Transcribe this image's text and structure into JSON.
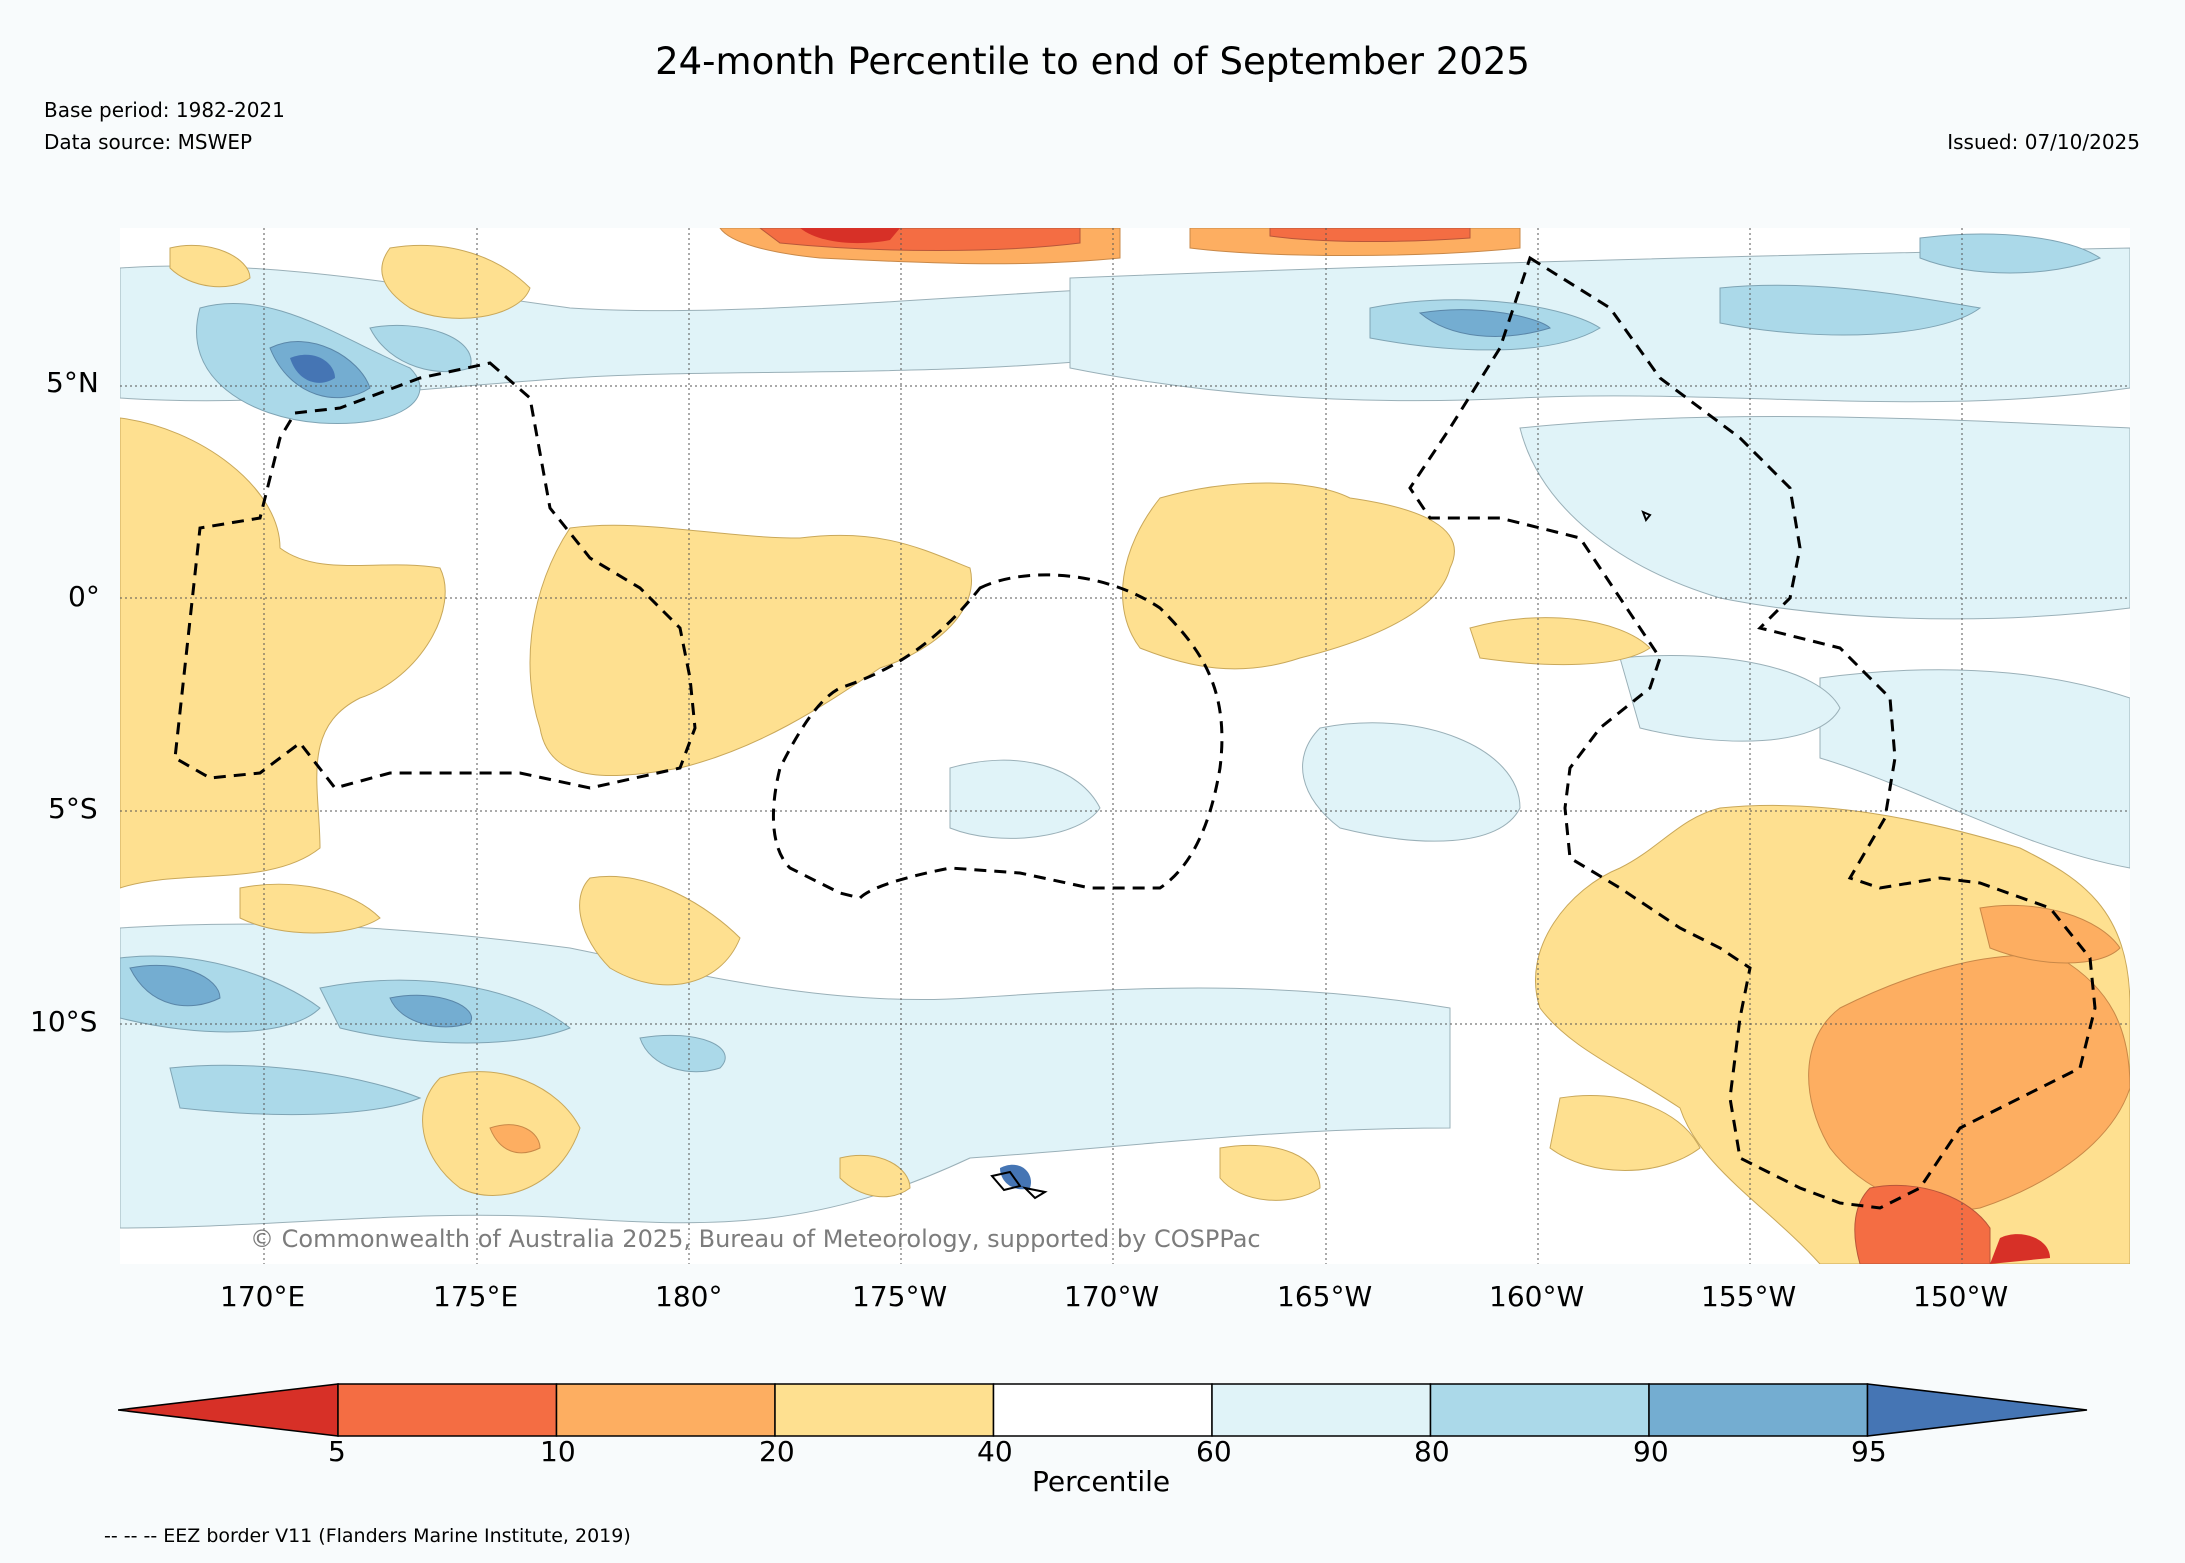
{
  "title": "24-month Percentile to end of September 2025",
  "base_period": "Base period: 1982-2021",
  "data_source": "Data source: MSWEP",
  "issued": "Issued: 07/10/2025",
  "copyright": "© Commonwealth of Australia 2025, Bureau of Meteorology, supported by COSPPac",
  "footer_note": "-- -- -- EEZ border V11 (Flanders Marine Institute, 2019)",
  "lat_labels": [
    "5°N",
    "0°",
    "5°S",
    "10°S"
  ],
  "lon_labels": [
    "170°E",
    "175°E",
    "180°",
    "175°W",
    "170°W",
    "165°W",
    "160°W",
    "155°W",
    "150°W"
  ],
  "colorbar": {
    "title": "Percentile",
    "ticks": [
      "5",
      "10",
      "20",
      "40",
      "60",
      "80",
      "90",
      "95"
    ],
    "colors": [
      "#d73027",
      "#f46d43",
      "#fdae61",
      "#fee090",
      "#ffffff",
      "#e0f3f8",
      "#abd9e9",
      "#74add1",
      "#4575b4"
    ]
  }
}
